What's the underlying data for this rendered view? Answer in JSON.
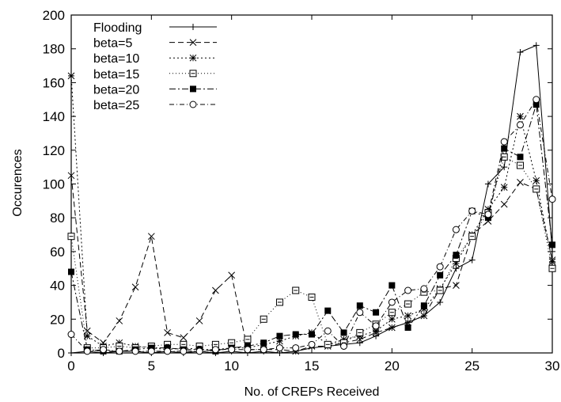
{
  "chart_data": {
    "type": "line",
    "title": "",
    "xlabel": "No. of CREPs Received",
    "ylabel": "Occurences",
    "xlim": [
      0,
      30
    ],
    "ylim": [
      0,
      200
    ],
    "xticks": [
      0,
      5,
      10,
      15,
      20,
      25,
      30
    ],
    "yticks": [
      0,
      20,
      40,
      60,
      80,
      100,
      120,
      140,
      160,
      180,
      200
    ],
    "grid": false,
    "legend_position": "top-left",
    "series": [
      {
        "name": "Flooding",
        "marker": "plus",
        "dash": "",
        "x": [
          0,
          1,
          2,
          3,
          4,
          5,
          6,
          7,
          8,
          9,
          10,
          11,
          12,
          13,
          14,
          15,
          16,
          17,
          18,
          19,
          20,
          21,
          22,
          23,
          24,
          25,
          26,
          27,
          28,
          29,
          30
        ],
        "values": [
          0,
          1,
          0,
          1,
          1,
          0,
          1,
          0,
          1,
          0,
          1,
          0,
          1,
          0,
          1,
          3,
          4,
          5,
          6,
          10,
          15,
          18,
          22,
          30,
          50,
          55,
          100,
          110,
          178,
          182,
          60
        ]
      },
      {
        "name": "beta=5",
        "marker": "x",
        "dash": "7,4",
        "x": [
          0,
          1,
          2,
          3,
          4,
          5,
          6,
          7,
          8,
          9,
          10,
          11,
          12,
          13,
          14,
          15,
          16,
          17,
          18,
          19,
          20,
          21,
          22,
          23,
          24,
          25,
          26,
          27,
          28,
          29,
          30
        ],
        "values": [
          105,
          13,
          6,
          19,
          39,
          69,
          12,
          9,
          19,
          37,
          46,
          2,
          2,
          2,
          1,
          4,
          4,
          6,
          8,
          12,
          15,
          18,
          22,
          38,
          40,
          70,
          78,
          88,
          101,
          97,
          55
        ]
      },
      {
        "name": "beta=10",
        "marker": "asterisk",
        "dash": "2,3",
        "x": [
          0,
          1,
          2,
          3,
          4,
          5,
          6,
          7,
          8,
          9,
          10,
          11,
          12,
          13,
          14,
          15,
          16,
          17,
          18,
          19,
          20,
          21,
          22,
          23,
          24,
          25,
          26,
          27,
          28,
          29,
          30
        ],
        "values": [
          164,
          10,
          4,
          6,
          4,
          3,
          2,
          3,
          2,
          2,
          3,
          3,
          5,
          7,
          10,
          12,
          5,
          8,
          10,
          13,
          20,
          22,
          26,
          38,
          53,
          70,
          85,
          98,
          140,
          102,
          54
        ]
      },
      {
        "name": "beta=15",
        "marker": "square-open",
        "dash": "1,3",
        "x": [
          0,
          1,
          2,
          3,
          4,
          5,
          6,
          7,
          8,
          9,
          10,
          11,
          12,
          13,
          14,
          15,
          16,
          17,
          18,
          19,
          20,
          21,
          22,
          23,
          24,
          25,
          26,
          27,
          28,
          29,
          30
        ],
        "values": [
          69,
          3,
          3,
          4,
          3,
          4,
          5,
          5,
          4,
          5,
          6,
          8,
          20,
          30,
          37,
          33,
          5,
          6,
          12,
          17,
          24,
          29,
          36,
          37,
          56,
          69,
          83,
          116,
          111,
          97,
          50
        ]
      },
      {
        "name": "beta=20",
        "marker": "square-filled",
        "dash": "8,3,2,3",
        "x": [
          0,
          1,
          2,
          3,
          4,
          5,
          6,
          7,
          8,
          9,
          10,
          11,
          12,
          13,
          14,
          15,
          16,
          17,
          18,
          19,
          20,
          21,
          22,
          23,
          24,
          25,
          26,
          27,
          28,
          29,
          30
        ],
        "values": [
          48,
          2,
          1,
          1,
          2,
          3,
          3,
          2,
          2,
          1,
          3,
          4,
          6,
          10,
          11,
          11,
          25,
          12,
          28,
          24,
          40,
          15,
          28,
          46,
          58,
          84,
          80,
          121,
          116,
          147,
          64
        ]
      },
      {
        "name": "beta=25",
        "marker": "circle-open",
        "dash": "6,3,1,3",
        "x": [
          0,
          1,
          2,
          3,
          4,
          5,
          6,
          7,
          8,
          9,
          10,
          11,
          12,
          13,
          14,
          15,
          16,
          17,
          18,
          19,
          20,
          21,
          22,
          23,
          24,
          25,
          26,
          27,
          28,
          29,
          30
        ],
        "values": [
          11,
          1,
          2,
          1,
          1,
          1,
          1,
          1,
          1,
          2,
          2,
          2,
          2,
          3,
          3,
          5,
          13,
          4,
          24,
          16,
          30,
          37,
          38,
          51,
          73,
          84,
          82,
          125,
          135,
          150,
          91
        ]
      }
    ]
  }
}
